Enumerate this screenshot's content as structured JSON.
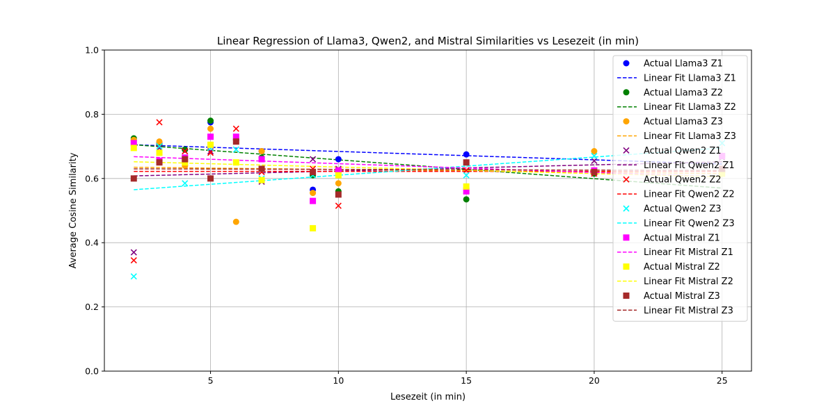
{
  "chart_data": {
    "type": "scatter",
    "title": "Linear Regression of Llama3, Qwen2, and Mistral Similarities vs Lesezeit (in min)",
    "xlabel": "Lesezeit (in min)",
    "ylabel": "Average Cosine Similarity",
    "xlim": [
      0.85,
      26.15
    ],
    "ylim": [
      0.0,
      1.0
    ],
    "xticks": [
      5,
      10,
      15,
      20,
      25
    ],
    "yticks": [
      0.0,
      0.2,
      0.4,
      0.6,
      0.8,
      1.0
    ],
    "xtick_labels": [
      "5",
      "10",
      "15",
      "20",
      "25"
    ],
    "ytick_labels": [
      "0.0",
      "0.2",
      "0.4",
      "0.6",
      "0.8",
      "1.0"
    ],
    "grid": true,
    "legend_position": "top-right",
    "x": [
      2,
      3,
      4,
      5,
      6,
      7,
      9,
      10,
      15,
      20,
      25
    ],
    "series": [
      {
        "name": "Actual Llama3 Z1",
        "kind": "scatter",
        "marker": "circle",
        "color": "#0000ff",
        "values": [
          0.72,
          0.71,
          0.69,
          0.775,
          0.72,
          0.685,
          0.565,
          0.66,
          0.675,
          0.615,
          0.67
        ]
      },
      {
        "name": "Linear Fit Llama3 Z1",
        "kind": "line",
        "color": "#0000ff",
        "x": [
          2,
          25
        ],
        "values": [
          0.705,
          0.645
        ]
      },
      {
        "name": "Actual Llama3 Z2",
        "kind": "scatter",
        "marker": "circle",
        "color": "#008000",
        "values": [
          0.725,
          0.705,
          0.69,
          0.78,
          0.72,
          0.665,
          0.61,
          0.56,
          0.535,
          0.615,
          0.625
        ]
      },
      {
        "name": "Linear Fit Llama3 Z2",
        "kind": "line",
        "color": "#008000",
        "x": [
          2,
          25
        ],
        "values": [
          0.705,
          0.57
        ]
      },
      {
        "name": "Actual Llama3 Z3",
        "kind": "scatter",
        "marker": "circle",
        "color": "#ffa500",
        "values": [
          0.72,
          0.715,
          0.64,
          0.755,
          0.465,
          0.685,
          0.555,
          0.585,
          0.57,
          0.685,
          0.62
        ]
      },
      {
        "name": "Linear Fit Llama3 Z3",
        "kind": "line",
        "color": "#ffa500",
        "x": [
          2,
          25
        ],
        "values": [
          0.635,
          0.615
        ]
      },
      {
        "name": "Actual Qwen2 Z1",
        "kind": "scatter",
        "marker": "x",
        "color": "#800080",
        "values": [
          0.37,
          0.695,
          0.685,
          0.685,
          0.72,
          0.59,
          0.66,
          0.63,
          0.56,
          0.655,
          0.665
        ]
      },
      {
        "name": "Linear Fit Qwen2 Z1",
        "kind": "line",
        "color": "#800080",
        "x": [
          2,
          25
        ],
        "values": [
          0.608,
          0.652
        ]
      },
      {
        "name": "Actual Qwen2 Z2",
        "kind": "scatter",
        "marker": "x",
        "color": "#ff0000",
        "values": [
          0.345,
          0.775,
          0.685,
          0.68,
          0.755,
          0.62,
          0.63,
          0.515,
          0.625,
          0.615,
          0.625
        ]
      },
      {
        "name": "Linear Fit Qwen2 Z2",
        "kind": "line",
        "color": "#ff0000",
        "x": [
          2,
          25
        ],
        "values": [
          0.622,
          0.622
        ]
      },
      {
        "name": "Actual Qwen2 Z3",
        "kind": "scatter",
        "marker": "x",
        "color": "#00ffff",
        "values": [
          0.295,
          0.7,
          0.585,
          0.695,
          0.69,
          0.6,
          0.61,
          0.625,
          0.61,
          0.67,
          0.71
        ]
      },
      {
        "name": "Linear Fit Qwen2 Z3",
        "kind": "line",
        "color": "#00ffff",
        "x": [
          2,
          25
        ],
        "values": [
          0.565,
          0.695
        ]
      },
      {
        "name": "Actual Mistral Z1",
        "kind": "scatter",
        "marker": "square",
        "color": "#ff00ff",
        "values": [
          0.71,
          0.655,
          0.665,
          0.73,
          0.73,
          0.66,
          0.53,
          0.625,
          0.56,
          0.625,
          0.67
        ]
      },
      {
        "name": "Linear Fit Mistral Z1",
        "kind": "line",
        "color": "#ff00ff",
        "x": [
          2,
          25
        ],
        "values": [
          0.668,
          0.605
        ]
      },
      {
        "name": "Actual Mistral Z2",
        "kind": "scatter",
        "marker": "square",
        "color": "#ffff00",
        "values": [
          0.695,
          0.68,
          0.65,
          0.705,
          0.65,
          0.595,
          0.445,
          0.61,
          0.575,
          0.62,
          0.615
        ]
      },
      {
        "name": "Linear Fit Mistral Z2",
        "kind": "line",
        "color": "#ffff00",
        "x": [
          2,
          25
        ],
        "values": [
          0.652,
          0.605
        ]
      },
      {
        "name": "Actual Mistral Z3",
        "kind": "scatter",
        "marker": "square",
        "color": "#a52a2a",
        "values": [
          0.6,
          0.65,
          0.66,
          0.6,
          0.715,
          0.63,
          0.62,
          0.55,
          0.65,
          0.62,
          0.63
        ]
      },
      {
        "name": "Linear Fit Mistral Z3",
        "kind": "line",
        "color": "#a52a2a",
        "x": [
          2,
          25
        ],
        "values": [
          0.63,
          0.625
        ]
      }
    ]
  }
}
